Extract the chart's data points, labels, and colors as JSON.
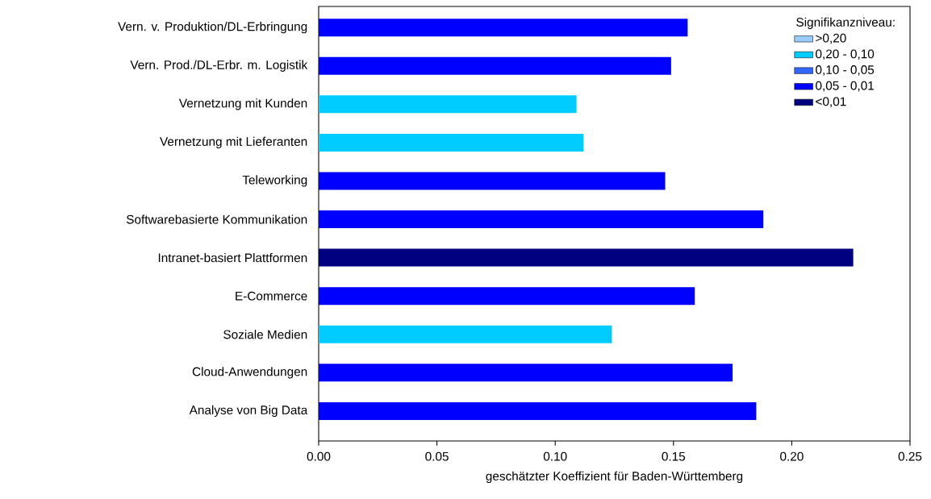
{
  "chart_data": {
    "type": "bar",
    "orientation": "horizontal",
    "xlabel": "geschätzter Koeffizient für Baden-Württemberg",
    "legend_title": "Signifikanzniveau:",
    "categories": [
      "Vern. v. Produktion/DL-Erbringung",
      "Vern. Prod./DL-Erbr. m. Logistik",
      "Vernetzung mit Kunden",
      "Vernetzung mit Lieferanten",
      "Teleworking",
      "Softwarebasierte Kommunikation",
      "Intranet-basiert Plattformen",
      "E-Commerce",
      "Soziale Medien",
      "Cloud-Anwendungen",
      "Analyse von Big Data"
    ],
    "series": [
      {
        "name": ">0,20",
        "color": "#99ccff",
        "values": [
          null,
          null,
          null,
          null,
          null,
          null,
          null,
          null,
          null,
          null,
          null
        ]
      },
      {
        "name": "0,20 - 0,10",
        "color": "#00ccff",
        "values": [
          null,
          null,
          0.109,
          0.112,
          null,
          null,
          null,
          null,
          0.124,
          null,
          null
        ]
      },
      {
        "name": "0,10 - 0,05",
        "color": "#3366ff",
        "values": [
          null,
          null,
          null,
          null,
          null,
          null,
          null,
          null,
          null,
          null,
          null
        ]
      },
      {
        "name": "0,05 - 0,01",
        "color": "#0000ff",
        "values": [
          0.156,
          0.149,
          null,
          null,
          0.1465,
          0.188,
          null,
          0.159,
          null,
          0.175,
          0.185
        ]
      },
      {
        "name": "<0,01",
        "color": "#000080",
        "values": [
          null,
          null,
          null,
          null,
          null,
          null,
          0.226,
          null,
          null,
          null,
          null
        ]
      }
    ],
    "xlim": [
      0,
      0.25
    ],
    "xticks": [
      {
        "value": 0,
        "label": "0.00"
      },
      {
        "value": 0.05,
        "label": "0.05"
      },
      {
        "value": 0.1,
        "label": "0.10"
      },
      {
        "value": 0.15,
        "label": "0.15"
      },
      {
        "value": 0.2,
        "label": "0.20"
      },
      {
        "value": 0.25,
        "label": "0.25"
      }
    ],
    "legend": "top right"
  }
}
